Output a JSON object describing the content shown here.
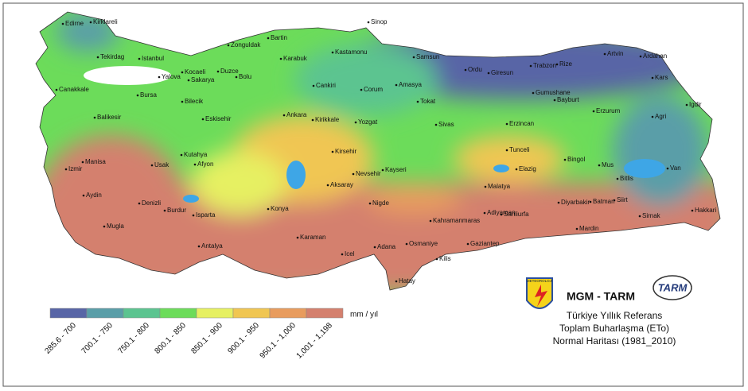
{
  "map": {
    "cities": [
      "Edirne",
      "Kirklareli",
      "Tekirdag",
      "Istanbul",
      "Canakkale",
      "Balikesir",
      "Bursa",
      "Yalova",
      "Kocaeli",
      "Sakarya",
      "Duzce",
      "Bolu",
      "Zonguldak",
      "Bartin",
      "Karabuk",
      "Kastamonu",
      "Sinop",
      "Samsun",
      "Ordu",
      "Giresun",
      "Trabzon",
      "Rize",
      "Artvin",
      "Ardahan",
      "Kars",
      "Igdir",
      "Agri",
      "Erzurum",
      "Bayburt",
      "Gumushane",
      "Erzincan",
      "Tunceli",
      "Bingol",
      "Mus",
      "Van",
      "Bitlis",
      "Hakkari",
      "Sirnak",
      "Siirt",
      "Batman",
      "Diyarbakir",
      "Mardin",
      "Sanliurfa",
      "Adiyaman",
      "Malatya",
      "Elazig",
      "Kahramanmaras",
      "Gaziantep",
      "Kilis",
      "Osmaniye",
      "Adana",
      "Hatay",
      "Icel",
      "Karaman",
      "Nigde",
      "Aksaray",
      "Nevsehir",
      "Kayseri",
      "Kirsehir",
      "Yozgat",
      "Sivas",
      "Tokat",
      "Amasya",
      "Corum",
      "Cankiri",
      "Kirikkale",
      "Ankara",
      "Eskisehir",
      "Bilecik",
      "Kutahya",
      "Usak",
      "Afyon",
      "Manisa",
      "Izmir",
      "Aydin",
      "Denizli",
      "Mugla",
      "Burdur",
      "Isparta",
      "Antalya",
      "Konya"
    ]
  },
  "legend": {
    "unit": "mm / yıl",
    "classes": [
      {
        "label": "285.6 - 700",
        "color": "#5865a6"
      },
      {
        "label": "700.1 - 750",
        "color": "#5a9ea8"
      },
      {
        "label": "750.1 - 800",
        "color": "#5cc490"
      },
      {
        "label": "800.1 - 850",
        "color": "#6cdc5a"
      },
      {
        "label": "850.1 - 900",
        "color": "#e6f062"
      },
      {
        "label": "900.1 - 950",
        "color": "#f0c652"
      },
      {
        "label": "950.1 - 1,000",
        "color": "#e89c5e"
      },
      {
        "label": "1,001 - 1,198",
        "color": "#d4806e"
      }
    ]
  },
  "title": {
    "org": "MGM - TARM",
    "lines": [
      "Türkiye Yıllık  Referans",
      "Toplam Buharlaşma (ETo)",
      "Normal Haritası (1981_2010)"
    ]
  },
  "logos": {
    "left": "METEOROLOJI",
    "right": "TARM"
  }
}
